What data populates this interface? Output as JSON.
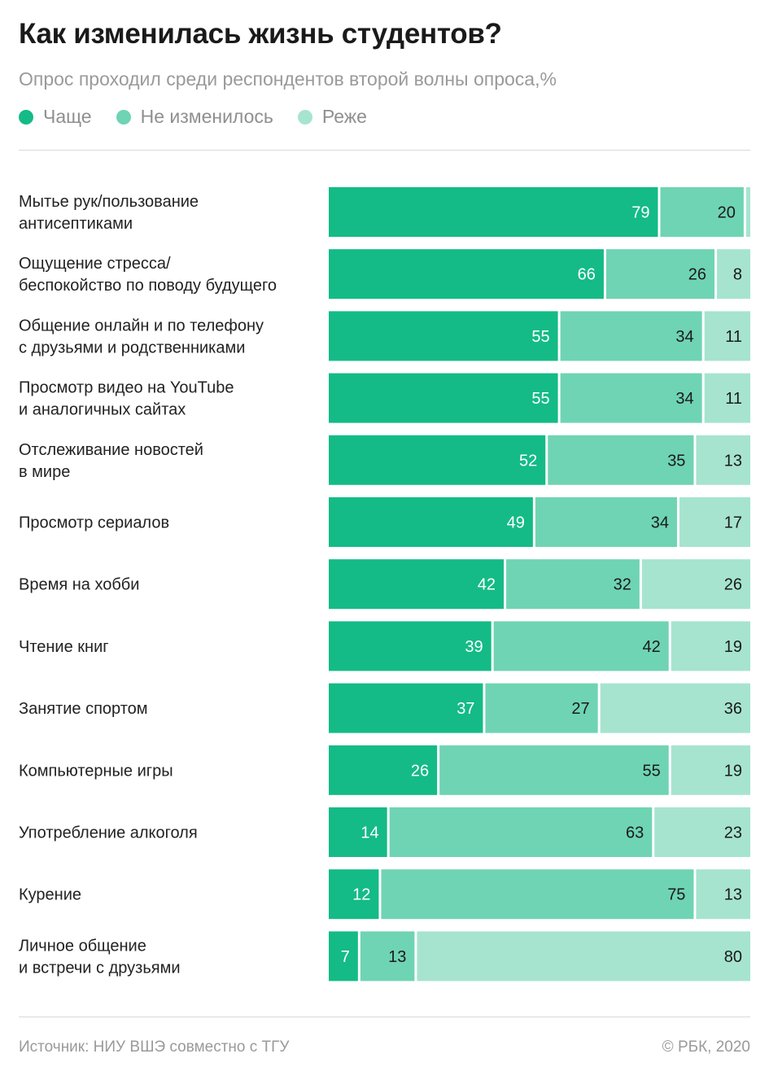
{
  "header": {
    "title": "Как изменилась жизнь студентов?",
    "subtitle": "Опрос проходил среди респондентов второй волны опроса,%"
  },
  "legend": [
    {
      "label": "Чаще",
      "color": "#14bb86"
    },
    {
      "label": "Не изменилось",
      "color": "#6fd4b3"
    },
    {
      "label": "Реже",
      "color": "#a6e4cf"
    }
  ],
  "footer": {
    "source": "Источник: НИУ ВШЭ совместно с ТГУ",
    "copyright": "© РБК, 2020"
  },
  "chart_data": {
    "type": "bar",
    "orientation": "horizontal",
    "stacked": true,
    "title": "Как изменилась жизнь студентов?",
    "subtitle": "Опрос проходил среди респондентов второй волны опроса,%",
    "categories": [
      [
        "Мытье рук/пользование",
        "антисептиками"
      ],
      [
        "Ощущение стресса/",
        "беспокойство по поводу будущего"
      ],
      [
        "Общение онлайн и по телефону",
        "с друзьями и родственниками"
      ],
      [
        "Просмотр видео на YouTube",
        "и аналогичных сайтах"
      ],
      [
        "Отслеживание новостей",
        "в мире"
      ],
      [
        "Просмотр сериалов"
      ],
      [
        "Время на хобби"
      ],
      [
        "Чтение книг"
      ],
      [
        "Занятие спортом"
      ],
      [
        "Компьютерные игры"
      ],
      [
        "Употребление алкоголя"
      ],
      [
        "Курение"
      ],
      [
        "Личное общение",
        "и встречи с друзьями"
      ]
    ],
    "series": [
      {
        "name": "Чаще",
        "color": "#14bb86",
        "label_color": "#ffffff",
        "values": [
          79,
          66,
          55,
          55,
          52,
          49,
          42,
          39,
          37,
          26,
          14,
          12,
          7
        ]
      },
      {
        "name": "Не изменилось",
        "color": "#6fd4b3",
        "label_color": "#1a1a1a",
        "values": [
          20,
          26,
          34,
          34,
          35,
          34,
          32,
          42,
          27,
          55,
          63,
          75,
          13
        ]
      },
      {
        "name": "Реже",
        "color": "#a6e4cf",
        "label_color": "#1a1a1a",
        "values": [
          1,
          8,
          11,
          11,
          13,
          17,
          26,
          19,
          36,
          19,
          23,
          13,
          80
        ]
      }
    ],
    "hidden_labels": [
      [
        2,
        0
      ]
    ],
    "xlim": [
      0,
      100
    ],
    "grid": false,
    "legend_position": "top-left"
  }
}
